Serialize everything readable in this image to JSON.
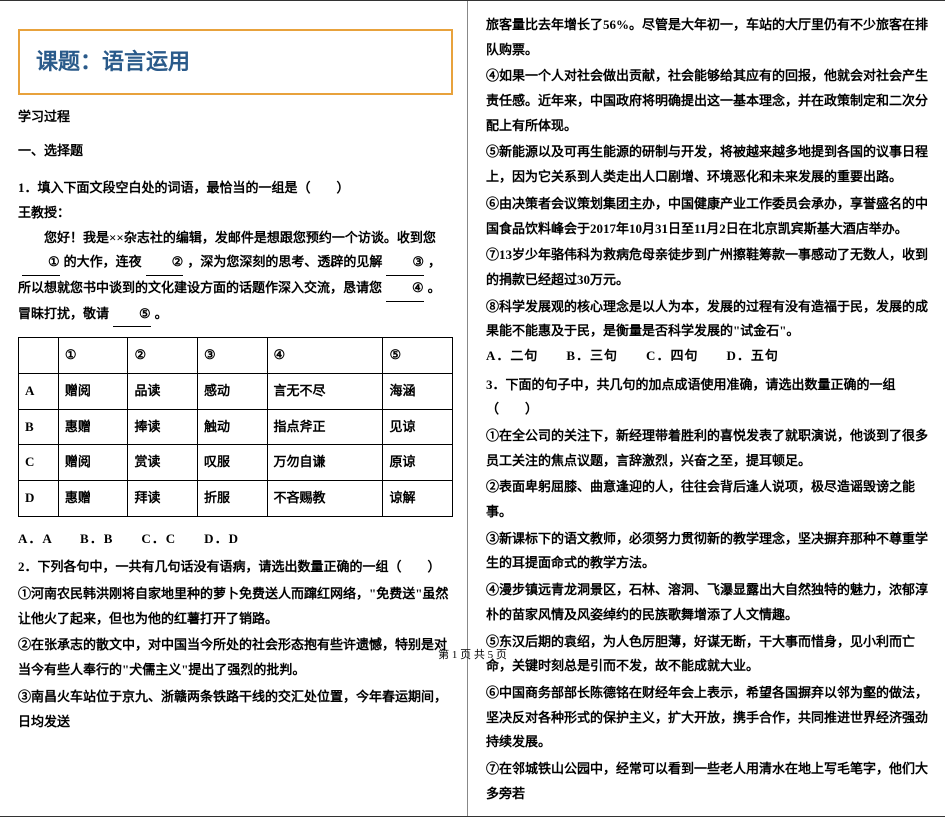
{
  "title": "课题：语言运用",
  "left": {
    "sec": "学习过程",
    "sub": "一、选择题",
    "q1": {
      "stem": "1．填入下面文段空白处的词语，最恰当的一组是（　　）",
      "name": "王教授：",
      "body_a": "您好！我是××杂志社的编辑，发邮件是想跟您预约一个访谈。收到您",
      "body_b": "的大作，连夜",
      "body_c": "，深为您深刻的思考、透辟的见解",
      "body_d": "，所以想就您书中谈到的文化建设方面的话题作深入交流，恳请您",
      "body_e": "。冒昧打扰，敬请",
      "body_f": "。",
      "cols": [
        "",
        "①",
        "②",
        "③",
        "④",
        "⑤"
      ],
      "rows": [
        [
          "A",
          "赠阅",
          "品读",
          "感动",
          "言无不尽",
          "海涵"
        ],
        [
          "B",
          "惠赠",
          "捧读",
          "触动",
          "指点斧正",
          "见谅"
        ],
        [
          "C",
          "赠阅",
          "赏读",
          "叹服",
          "万勿自谦",
          "原谅"
        ],
        [
          "D",
          "惠赠",
          "拜读",
          "折服",
          "不吝赐教",
          "谅解"
        ]
      ],
      "opts": "A．A　　B．B　　C．C　　D．D"
    },
    "q2": {
      "stem": "2．下列各句中，一共有几句话没有语病，请选出数量正确的一组（　　）",
      "i1": "①河南农民韩洪刚将自家地里种的萝卜免费送人而蹿红网络，\"免费送\"虽然让他火了起来，但也为他的红薯打开了销路。",
      "i2": "②在张承志的散文中，对中国当今所处的社会形态抱有些许遗憾，特别是对当今有些人奉行的\"犬儒主义\"提出了强烈的批判。",
      "i3": "③南昌火车站位于京九、浙赣两条铁路干线的交汇处位置，今年春运期间，日均发送"
    }
  },
  "right": {
    "i3b": "旅客量比去年增长了56%。尽管是大年初一，车站的大厅里仍有不少旅客在排队购票。",
    "i4": "④如果一个人对社会做出贡献，社会能够给其应有的回报，他就会对社会产生责任感。近年来，中国政府将明确提出这一基本理念，并在政策制定和二次分配上有所体现。",
    "i5": "⑤新能源以及可再生能源的研制与开发，将被越来越多地提到各国的议事日程上，因为它关系到人类走出人口剧增、环境恶化和未来发展的重要出路。",
    "i6": "⑥由决策者会议策划集团主办，中国健康产业工作委员会承办，享誉盛名的中国食品饮料峰会于2017年10月31日至11月2日在北京凯宾斯基大酒店举办。",
    "i7": "⑦13岁少年骆伟科为救病危母亲徒步到广州擦鞋筹款一事感动了无数人，收到的捐款已经超过30万元。",
    "i8": "⑧科学发展观的核心理念是以人为本，发展的过程有没有造福于民，发展的成果能不能惠及于民，是衡量是否科学发展的\"试金石\"。",
    "q2opts": "A．二句　　B．三句　　C．四句　　D．五句",
    "q3": {
      "stem": "3．下面的句子中，共几句的加点成语使用准确，请选出数量正确的一组（　　）",
      "i1": "①在全公司的关注下，新经理带着胜利的喜悦发表了就职演说，他谈到了很多员工关注的焦点议题，言辞激烈，兴奋之至，提耳顿足。",
      "i2": "②表面卑躬屈膝、曲意逢迎的人，往往会背后逢人说项，极尽造谣毁谤之能事。",
      "i3": "③新课标下的语文教师，必须努力贯彻新的教学理念，坚决摒弃那种不尊重学生的耳提面命式的教学方法。",
      "i4": "④漫步镇远青龙洞景区，石林、溶洞、飞瀑显露出大自然独特的魅力，浓郁淳朴的苗家风情及风姿绰约的民族歌舞增添了人文情趣。",
      "i5": "⑤东汉后期的袁绍，为人色厉胆薄，好谋无断，干大事而惜身，见小利而亡命，关键时刻总是引而不发，故不能成就大业。",
      "i6": "⑥中国商务部部长陈德铭在财经年会上表示，希望各国摒弃以邻为壑的做法，坚决反对各种形式的保护主义，扩大开放，携手合作，共同推进世界经济强劲持续发展。",
      "i7": "⑦在邻城铁山公园中，经常可以看到一些老人用清水在地上写毛笔字，他们大多旁若"
    }
  },
  "footer": "第 1 页 共 5 页"
}
